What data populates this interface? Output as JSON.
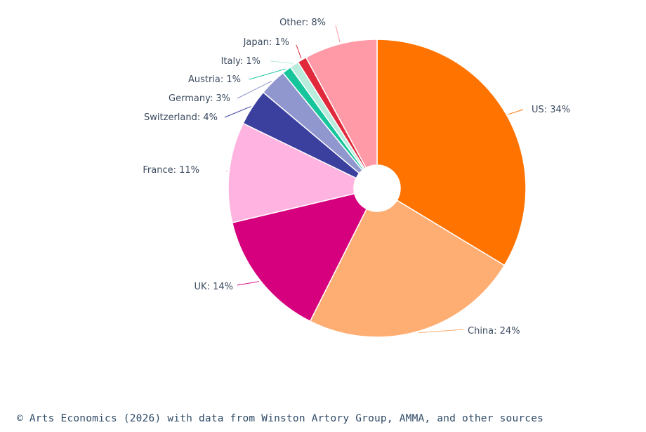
{
  "chart_data": {
    "type": "pie",
    "title": "",
    "donut": true,
    "slices": [
      {
        "label": "US: 34%",
        "value": 34,
        "color": "#ff7300"
      },
      {
        "label": "China: 24%",
        "value": 24,
        "color": "#ffae73"
      },
      {
        "label": "UK: 14%",
        "value": 14,
        "color": "#d6007e"
      },
      {
        "label": "France: 11%",
        "value": 11,
        "color": "#ffb3e0"
      },
      {
        "label": "Switzerland: 4%",
        "value": 4,
        "color": "#3b3f9e"
      },
      {
        "label": "Germany: 3%",
        "value": 3,
        "color": "#9097cf"
      },
      {
        "label": "Austria: 1%",
        "value": 1,
        "color": "#16c59b"
      },
      {
        "label": "Italy: 1%",
        "value": 1,
        "color": "#b9ecdd"
      },
      {
        "label": "Japan: 1%",
        "value": 1,
        "color": "#e02a3c"
      },
      {
        "label": "Other: 8%",
        "value": 8,
        "color": "#ff9aa6"
      }
    ]
  },
  "footer": {
    "source": "© Arts Economics (2026) with data from Winston Artory Group, AMMA, and other sources"
  }
}
